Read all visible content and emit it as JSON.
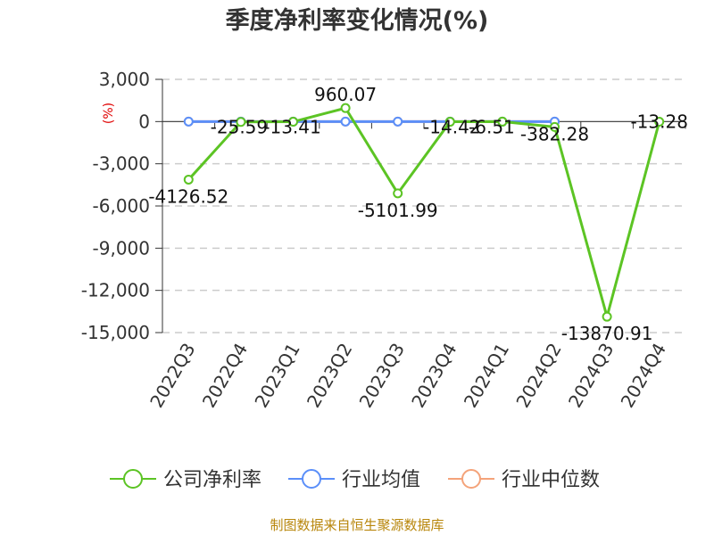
{
  "title": "季度净利率变化情况(%)",
  "source": "制图数据来自恒生聚源数据库",
  "chart_data": {
    "type": "line",
    "unit_label": "(%)",
    "categories": [
      "2022Q3",
      "2022Q4",
      "2023Q1",
      "2023Q2",
      "2023Q3",
      "2023Q4",
      "2024Q1",
      "2024Q2",
      "2024Q3",
      "2024Q4"
    ],
    "ylim": [
      -15000,
      3000
    ],
    "yticks": [
      3000,
      0,
      -3000,
      -6000,
      -9000,
      -12000,
      -15000
    ],
    "ytick_labels": [
      "3,000",
      "0",
      "-3,000",
      "-6,000",
      "-9,000",
      "-12,000",
      "-15,000"
    ],
    "grid": true,
    "series": [
      {
        "name": "公司净利率",
        "color": "#5cc424",
        "values": [
          -4126.52,
          -25.59,
          -13.41,
          960.07,
          -5101.99,
          -14.42,
          -6.51,
          -382.28,
          -13870.91,
          -13.28
        ],
        "labels": [
          "-4126.52",
          "-25.59",
          "-13.41",
          "960.07",
          "-5101.99",
          "-14.42",
          "-6.51",
          "-382.28",
          "-13870.91",
          "-13.28"
        ]
      },
      {
        "name": "行业均值",
        "color": "#5b8ff9",
        "values": [
          0,
          0,
          0,
          0,
          0,
          0,
          0,
          0,
          null,
          null
        ],
        "labels": []
      },
      {
        "name": "行业中位数",
        "color": "#f4a37a",
        "values": [
          0,
          0,
          0,
          0,
          0,
          0,
          0,
          0,
          null,
          null
        ],
        "labels": []
      }
    ],
    "legend_position": "bottom"
  }
}
